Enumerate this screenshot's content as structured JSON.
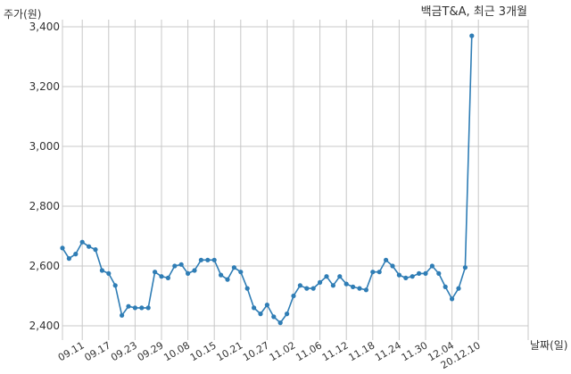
{
  "chart_data": {
    "type": "line",
    "title": "백금T&A, 최근 3개월",
    "xlabel": "날짜(일)",
    "ylabel": "주가(원)",
    "ylim": [
      2400,
      3400
    ],
    "yticks": [
      2400,
      2600,
      2800,
      3000,
      3200,
      3400
    ],
    "ytick_labels": [
      "2,400",
      "2,600",
      "2,800",
      "3,000",
      "3,200",
      "3,400"
    ],
    "xtick_labels": [
      "09.11",
      "09.17",
      "09.23",
      "09.29",
      "10.08",
      "10.15",
      "10.21",
      "10.27",
      "11.02",
      "11.06",
      "11.12",
      "11.18",
      "11.24",
      "11.30",
      "12.04",
      "20.12.10"
    ],
    "xtick_index": [
      3,
      7,
      11,
      15,
      19,
      23,
      27,
      31,
      35,
      39,
      43,
      47,
      51,
      55,
      59,
      63
    ],
    "grid": true,
    "line_color": "#2f7db5",
    "series": [
      {
        "values": [
          2660,
          2625,
          2640,
          2680,
          2665,
          2655,
          2585,
          2575,
          2535,
          2435,
          2465,
          2460,
          2460,
          2460,
          2580,
          2565,
          2560,
          2600,
          2605,
          2575,
          2585,
          2620,
          2620,
          2620,
          2570,
          2555,
          2595,
          2580,
          2525,
          2460,
          2440,
          2470,
          2430,
          2410,
          2440,
          2500,
          2535,
          2525,
          2525,
          2545,
          2565,
          2535,
          2565,
          2540,
          2530,
          2525,
          2520,
          2580,
          2580,
          2620,
          2600,
          2570,
          2560,
          2565,
          2575,
          2575,
          2600,
          2575,
          2530,
          2490,
          2525,
          2595,
          3370
        ]
      }
    ]
  }
}
